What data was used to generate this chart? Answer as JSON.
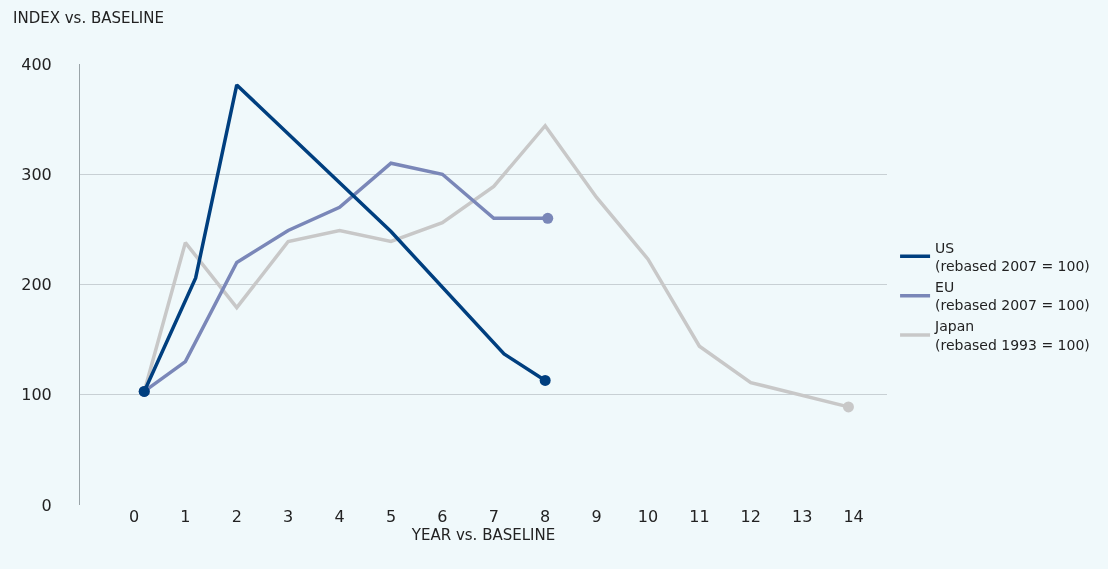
{
  "chart_data": {
    "type": "line",
    "ylabel": "INDEX vs. BASELINE",
    "xlabel": "YEAR vs. BASELINE",
    "xlim": [
      -1.05,
      14.65
    ],
    "xticks": [
      0,
      1,
      2,
      3,
      4,
      5,
      6,
      7,
      8,
      9,
      10,
      11,
      12,
      13,
      14
    ],
    "ylim": [
      0,
      400
    ],
    "yticks": [
      0,
      100,
      200,
      300,
      400
    ],
    "grid": "y",
    "legend": "right",
    "series": [
      {
        "name": "Japan\n(rebased 1993 = 100)",
        "color": "#c8c8c8",
        "x": [
          0.2,
          1,
          2,
          3,
          4,
          5,
          6,
          7,
          8,
          9,
          10,
          11,
          12,
          13.9
        ],
        "values": [
          103,
          238,
          179,
          239,
          249,
          239,
          256,
          289,
          344,
          279,
          223,
          144,
          111,
          89
        ]
      },
      {
        "name": "EU\n(rebased 2007 = 100)",
        "color": "#7a87b8",
        "x": [
          0.2,
          1,
          2,
          3,
          4,
          5,
          6,
          7,
          8.05
        ],
        "values": [
          103,
          130,
          220,
          249,
          270,
          310,
          300,
          260,
          260
        ]
      },
      {
        "name": "US\n(rebased 2007 = 100)",
        "color": "#003f7f",
        "x": [
          0.2,
          1.2,
          2,
          5,
          7.2,
          8
        ],
        "values": [
          103,
          206,
          381,
          248,
          137,
          113
        ]
      }
    ]
  }
}
